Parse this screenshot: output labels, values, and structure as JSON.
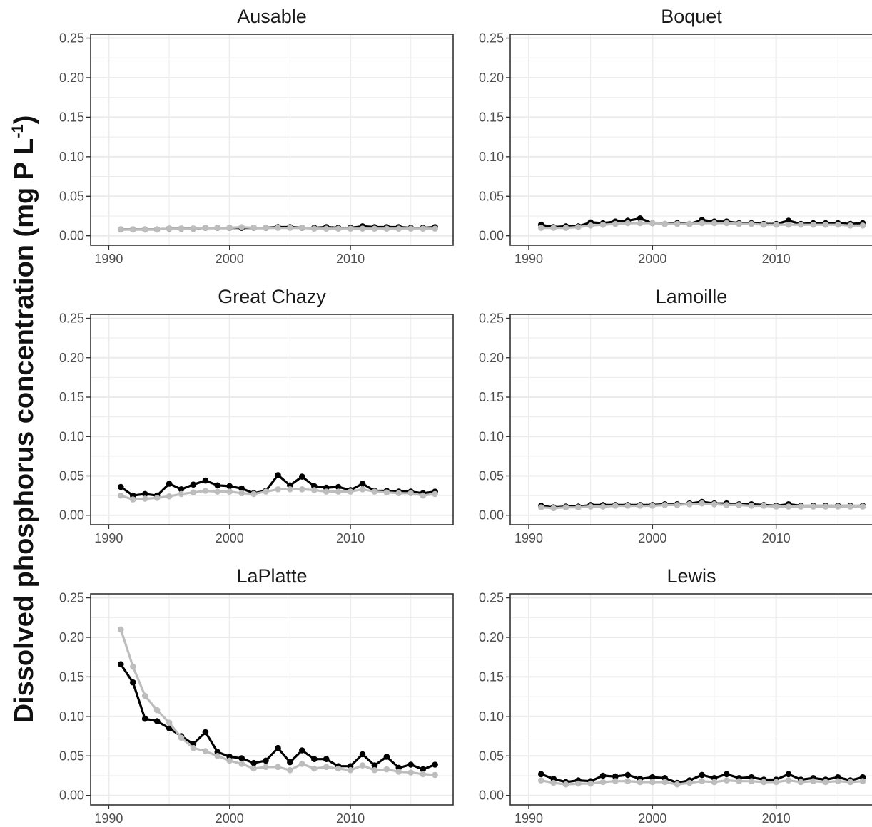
{
  "ylabel": {
    "main": "Dissolved phosphorus concentration (mg P L",
    "sup": "-1",
    "close": ")"
  },
  "colors": {
    "series_black": "#000000",
    "series_gray": "#bdbdbd",
    "grid": "#ebebeb",
    "frame": "#333333",
    "panel_bg": "#ffffff"
  },
  "chart_data": [
    {
      "type": "line",
      "title": "Ausable",
      "xlim": [
        1988.5,
        2018.5
      ],
      "ylim": [
        -0.012,
        0.255
      ],
      "x_ticks": [
        1990,
        2000,
        2010
      ],
      "x_tick_labels": [
        "1990",
        "2000",
        "2010"
      ],
      "y_ticks": [
        0,
        0.05,
        0.1,
        0.15,
        0.2,
        0.25
      ],
      "y_tick_labels": [
        "0.00",
        "0.05",
        "0.10",
        "0.15",
        "0.20",
        "0.25"
      ],
      "grid": true,
      "x": [
        1991,
        1992,
        1993,
        1994,
        1995,
        1996,
        1997,
        1998,
        1999,
        2000,
        2001,
        2002,
        2003,
        2004,
        2005,
        2006,
        2007,
        2008,
        2009,
        2010,
        2011,
        2012,
        2013,
        2014,
        2015,
        2016,
        2017
      ],
      "series": [
        {
          "color": "#000000",
          "values": [
            0.008,
            0.008,
            0.008,
            0.008,
            0.009,
            0.009,
            0.009,
            0.01,
            0.01,
            0.01,
            0.01,
            0.01,
            0.01,
            0.011,
            0.011,
            0.01,
            0.01,
            0.011,
            0.01,
            0.01,
            0.012,
            0.011,
            0.011,
            0.011,
            0.01,
            0.01,
            0.011
          ]
        },
        {
          "color": "#bdbdbd",
          "values": [
            0.008,
            0.008,
            0.008,
            0.008,
            0.009,
            0.009,
            0.009,
            0.01,
            0.01,
            0.01,
            0.011,
            0.01,
            0.01,
            0.01,
            0.01,
            0.01,
            0.009,
            0.009,
            0.009,
            0.009,
            0.009,
            0.009,
            0.009,
            0.009,
            0.009,
            0.009,
            0.009
          ]
        }
      ]
    },
    {
      "type": "line",
      "title": "Boquet",
      "xlim": [
        1988.5,
        2018.5
      ],
      "ylim": [
        -0.012,
        0.255
      ],
      "x_ticks": [
        1990,
        2000,
        2010
      ],
      "x_tick_labels": [
        "1990",
        "2000",
        "2010"
      ],
      "y_ticks": [
        0,
        0.05,
        0.1,
        0.15,
        0.2,
        0.25
      ],
      "y_tick_labels": [
        "0.00",
        "0.05",
        "0.10",
        "0.15",
        "0.20",
        "0.25"
      ],
      "grid": true,
      "x": [
        1991,
        1992,
        1993,
        1994,
        1995,
        1996,
        1997,
        1998,
        1999,
        2000,
        2001,
        2002,
        2003,
        2004,
        2005,
        2006,
        2007,
        2008,
        2009,
        2010,
        2011,
        2012,
        2013,
        2014,
        2015,
        2016,
        2017
      ],
      "series": [
        {
          "color": "#000000",
          "values": [
            0.014,
            0.011,
            0.012,
            0.012,
            0.017,
            0.016,
            0.018,
            0.019,
            0.022,
            0.016,
            0.015,
            0.016,
            0.015,
            0.02,
            0.018,
            0.018,
            0.016,
            0.016,
            0.015,
            0.015,
            0.019,
            0.015,
            0.016,
            0.016,
            0.016,
            0.015,
            0.016
          ]
        },
        {
          "color": "#bdbdbd",
          "values": [
            0.01,
            0.01,
            0.01,
            0.011,
            0.013,
            0.014,
            0.015,
            0.016,
            0.016,
            0.016,
            0.015,
            0.015,
            0.015,
            0.016,
            0.016,
            0.016,
            0.015,
            0.015,
            0.014,
            0.014,
            0.014,
            0.014,
            0.014,
            0.014,
            0.014,
            0.013,
            0.013
          ]
        }
      ]
    },
    {
      "type": "line",
      "title": "Great Chazy",
      "xlim": [
        1988.5,
        2018.5
      ],
      "ylim": [
        -0.012,
        0.255
      ],
      "x_ticks": [
        1990,
        2000,
        2010
      ],
      "x_tick_labels": [
        "1990",
        "2000",
        "2010"
      ],
      "y_ticks": [
        0,
        0.05,
        0.1,
        0.15,
        0.2,
        0.25
      ],
      "y_tick_labels": [
        "0.00",
        "0.05",
        "0.10",
        "0.15",
        "0.20",
        "0.25"
      ],
      "grid": true,
      "x": [
        1991,
        1992,
        1993,
        1994,
        1995,
        1996,
        1997,
        1998,
        1999,
        2000,
        2001,
        2002,
        2003,
        2004,
        2005,
        2006,
        2007,
        2008,
        2009,
        2010,
        2011,
        2012,
        2013,
        2014,
        2015,
        2016,
        2017
      ],
      "series": [
        {
          "color": "#000000",
          "values": [
            0.036,
            0.025,
            0.027,
            0.025,
            0.04,
            0.033,
            0.039,
            0.044,
            0.038,
            0.037,
            0.034,
            0.028,
            0.031,
            0.051,
            0.038,
            0.049,
            0.037,
            0.035,
            0.036,
            0.032,
            0.04,
            0.031,
            0.031,
            0.03,
            0.03,
            0.028,
            0.03
          ]
        },
        {
          "color": "#bdbdbd",
          "values": [
            0.025,
            0.02,
            0.021,
            0.022,
            0.024,
            0.027,
            0.029,
            0.031,
            0.03,
            0.03,
            0.028,
            0.027,
            0.03,
            0.033,
            0.033,
            0.033,
            0.032,
            0.03,
            0.03,
            0.03,
            0.033,
            0.03,
            0.029,
            0.028,
            0.028,
            0.025,
            0.027
          ]
        }
      ]
    },
    {
      "type": "line",
      "title": "Lamoille",
      "xlim": [
        1988.5,
        2018.5
      ],
      "ylim": [
        -0.012,
        0.255
      ],
      "x_ticks": [
        1990,
        2000,
        2010
      ],
      "x_tick_labels": [
        "1990",
        "2000",
        "2010"
      ],
      "y_ticks": [
        0,
        0.05,
        0.1,
        0.15,
        0.2,
        0.25
      ],
      "y_tick_labels": [
        "0.00",
        "0.05",
        "0.10",
        "0.15",
        "0.20",
        "0.25"
      ],
      "grid": true,
      "x": [
        1991,
        1992,
        1993,
        1994,
        1995,
        1996,
        1997,
        1998,
        1999,
        2000,
        2001,
        2002,
        2003,
        2004,
        2005,
        2006,
        2007,
        2008,
        2009,
        2010,
        2011,
        2012,
        2013,
        2014,
        2015,
        2016,
        2017
      ],
      "series": [
        {
          "color": "#000000",
          "values": [
            0.012,
            0.01,
            0.011,
            0.011,
            0.013,
            0.013,
            0.013,
            0.013,
            0.013,
            0.013,
            0.014,
            0.014,
            0.015,
            0.017,
            0.015,
            0.015,
            0.014,
            0.014,
            0.013,
            0.012,
            0.014,
            0.012,
            0.012,
            0.012,
            0.012,
            0.012,
            0.012
          ]
        },
        {
          "color": "#bdbdbd",
          "values": [
            0.01,
            0.009,
            0.01,
            0.01,
            0.011,
            0.011,
            0.012,
            0.012,
            0.012,
            0.012,
            0.013,
            0.013,
            0.014,
            0.015,
            0.014,
            0.013,
            0.013,
            0.012,
            0.012,
            0.011,
            0.011,
            0.011,
            0.011,
            0.011,
            0.011,
            0.011,
            0.011
          ]
        }
      ]
    },
    {
      "type": "line",
      "title": "LaPlatte",
      "xlim": [
        1988.5,
        2018.5
      ],
      "ylim": [
        -0.012,
        0.255
      ],
      "x_ticks": [
        1990,
        2000,
        2010
      ],
      "x_tick_labels": [
        "1990",
        "2000",
        "2010"
      ],
      "y_ticks": [
        0,
        0.05,
        0.1,
        0.15,
        0.2,
        0.25
      ],
      "y_tick_labels": [
        "0.00",
        "0.05",
        "0.10",
        "0.15",
        "0.20",
        "0.25"
      ],
      "grid": true,
      "x": [
        1991,
        1992,
        1993,
        1994,
        1995,
        1996,
        1997,
        1998,
        1999,
        2000,
        2001,
        2002,
        2003,
        2004,
        2005,
        2006,
        2007,
        2008,
        2009,
        2010,
        2011,
        2012,
        2013,
        2014,
        2015,
        2016,
        2017
      ],
      "series": [
        {
          "color": "#000000",
          "values": [
            0.166,
            0.143,
            0.097,
            0.094,
            0.085,
            0.075,
            0.065,
            0.08,
            0.055,
            0.049,
            0.047,
            0.041,
            0.044,
            0.06,
            0.042,
            0.057,
            0.046,
            0.046,
            0.037,
            0.037,
            0.052,
            0.038,
            0.049,
            0.035,
            0.039,
            0.033,
            0.039
          ]
        },
        {
          "color": "#bdbdbd",
          "values": [
            0.21,
            0.163,
            0.126,
            0.108,
            0.092,
            0.073,
            0.06,
            0.056,
            0.05,
            0.044,
            0.04,
            0.034,
            0.036,
            0.036,
            0.032,
            0.04,
            0.034,
            0.036,
            0.034,
            0.032,
            0.038,
            0.032,
            0.033,
            0.03,
            0.029,
            0.027,
            0.026
          ]
        }
      ]
    },
    {
      "type": "line",
      "title": "Lewis",
      "xlim": [
        1988.5,
        2018.5
      ],
      "ylim": [
        -0.012,
        0.255
      ],
      "x_ticks": [
        1990,
        2000,
        2010
      ],
      "x_tick_labels": [
        "1990",
        "2000",
        "2010"
      ],
      "y_ticks": [
        0,
        0.05,
        0.1,
        0.15,
        0.2,
        0.25
      ],
      "y_tick_labels": [
        "0.00",
        "0.05",
        "0.10",
        "0.15",
        "0.20",
        "0.25"
      ],
      "grid": true,
      "x": [
        1991,
        1992,
        1993,
        1994,
        1995,
        1996,
        1997,
        1998,
        1999,
        2000,
        2001,
        2002,
        2003,
        2004,
        2005,
        2006,
        2007,
        2008,
        2009,
        2010,
        2011,
        2012,
        2013,
        2014,
        2015,
        2016,
        2017
      ],
      "series": [
        {
          "color": "#000000",
          "values": [
            0.027,
            0.021,
            0.017,
            0.019,
            0.018,
            0.025,
            0.024,
            0.026,
            0.021,
            0.023,
            0.022,
            0.016,
            0.019,
            0.026,
            0.022,
            0.027,
            0.022,
            0.023,
            0.02,
            0.02,
            0.027,
            0.02,
            0.022,
            0.02,
            0.023,
            0.019,
            0.023
          ]
        },
        {
          "color": "#bdbdbd",
          "values": [
            0.019,
            0.016,
            0.014,
            0.015,
            0.015,
            0.017,
            0.018,
            0.018,
            0.017,
            0.017,
            0.017,
            0.014,
            0.016,
            0.018,
            0.017,
            0.019,
            0.018,
            0.018,
            0.017,
            0.017,
            0.019,
            0.017,
            0.018,
            0.017,
            0.018,
            0.017,
            0.018
          ]
        }
      ]
    }
  ]
}
